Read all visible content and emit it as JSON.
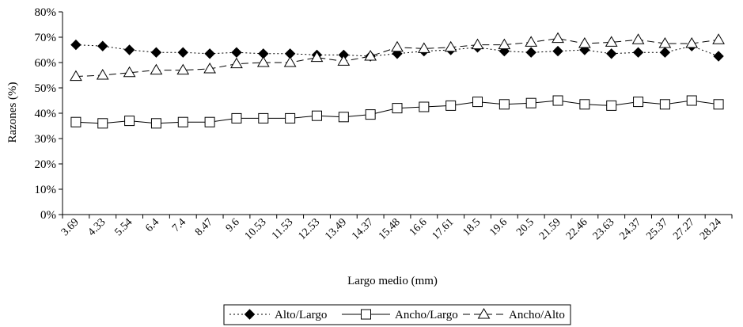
{
  "chart_data": {
    "type": "line",
    "title": "",
    "xlabel": "Largo medio (mm)",
    "ylabel": "Razones (%)",
    "ylim": [
      0,
      80
    ],
    "yticks": [
      "0%",
      "10%",
      "20%",
      "30%",
      "40%",
      "50%",
      "60%",
      "70%",
      "80%"
    ],
    "grid": false,
    "legend_position": "bottom",
    "categories": [
      "3.69",
      "4.33",
      "5.54",
      "6.4",
      "7.4",
      "8.47",
      "9.6",
      "10.53",
      "11.53",
      "12.53",
      "13.49",
      "14.37",
      "15.48",
      "16.6",
      "17.61",
      "18.5",
      "19.6",
      "20.5",
      "21.59",
      "22.46",
      "23.63",
      "24.37",
      "25.37",
      "27.27",
      "28.24"
    ],
    "series": [
      {
        "name": "Alto/Largo",
        "marker": "filled-diamond",
        "line": "dotted",
        "values": [
          67,
          66.5,
          65,
          64,
          64,
          63.5,
          64,
          63.5,
          63.5,
          63,
          63,
          62.5,
          63.5,
          64.5,
          65,
          66,
          64.5,
          64,
          64.5,
          65,
          63.5,
          64,
          64,
          66.5,
          62.5
        ]
      },
      {
        "name": "Ancho/Largo",
        "marker": "open-square",
        "line": "solid",
        "values": [
          36.5,
          36,
          37,
          36,
          36.5,
          36.5,
          38,
          38,
          38,
          39,
          38.5,
          39.5,
          42,
          42.5,
          43,
          44.5,
          43.5,
          44,
          45,
          43.5,
          43,
          44.5,
          43.5,
          45,
          43.5
        ]
      },
      {
        "name": "Ancho/Alto",
        "marker": "open-triangle",
        "line": "dashed",
        "values": [
          54.5,
          55,
          56,
          57,
          57,
          57.5,
          59.5,
          60,
          60,
          62,
          60.5,
          62.5,
          66,
          65.5,
          66,
          67,
          67,
          68,
          69.5,
          67.5,
          68,
          69,
          67.5,
          67.5,
          69
        ]
      }
    ]
  }
}
